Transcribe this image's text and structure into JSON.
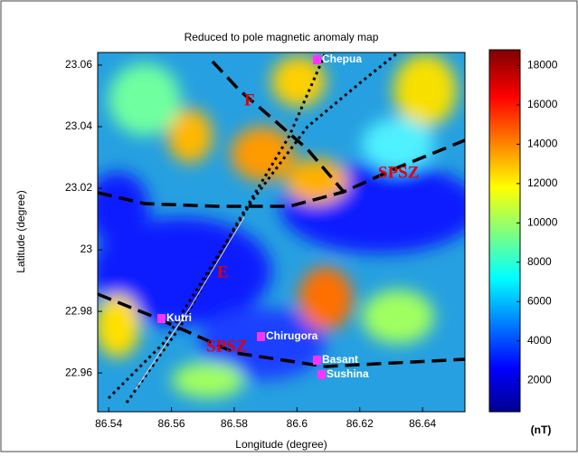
{
  "chart_data": {
    "type": "contour-map",
    "title": "Reduced to pole magnetic anomaly map",
    "x_label": "Longitude (degree)",
    "y_label": "Latitude (degree)",
    "xlim": [
      86.5365,
      86.6535
    ],
    "ylim": [
      22.9474,
      23.0641
    ],
    "xticks": [
      86.54,
      86.56,
      86.58,
      86.6,
      86.62,
      86.64
    ],
    "yticks": [
      22.96,
      22.98,
      23,
      23.02,
      23.04,
      23.06
    ],
    "colorbar": {
      "label": "(nT)",
      "lim": [
        400,
        18800
      ],
      "ticks": [
        2000,
        4000,
        6000,
        8000,
        10000,
        12000,
        14000,
        16000,
        18000
      ]
    },
    "places": [
      "Chepua",
      "Kutri",
      "Chirugora",
      "Basant",
      "Sushina"
    ],
    "structures": [
      "F",
      "E",
      "SPSZ",
      "SPSZ"
    ]
  }
}
